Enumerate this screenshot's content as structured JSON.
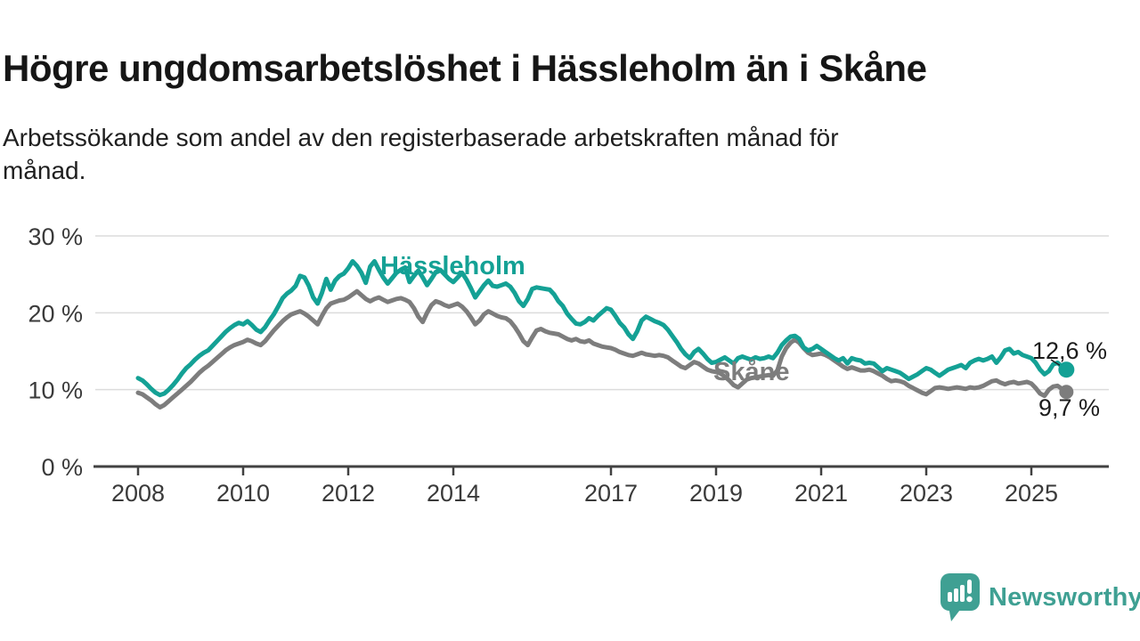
{
  "header": {
    "title": "Högre ungdomsarbetslöshet i Hässleholm än i Skåne",
    "subtitle_lines": [
      "Arbetssökande som andel av den registerbaserade arbetskraften månad för",
      "månad."
    ]
  },
  "annotations": {
    "hassleholm_end_value": "12,6 %",
    "skane_end_value": "9,7 %"
  },
  "footer": {
    "brand": "Newsworthy"
  },
  "colors": {
    "teal": "#14a195",
    "gray": "#7d7d7d",
    "logo_teal": "#3fa093",
    "axis": "#414141",
    "grid": "#dcdcdc",
    "tick_text": "#3a3a3a",
    "annotation_text": "#1c1c1c"
  },
  "chart_data": {
    "type": "line",
    "unit": "%",
    "frequency": "monthly",
    "x_start": {
      "year": 2008,
      "month": 1
    },
    "x_end": {
      "year": 2025,
      "month": 9
    },
    "ylim": [
      0,
      32
    ],
    "grid": "horizontal",
    "legend_position": "inline-labels",
    "y_ticks": [
      {
        "value": 30,
        "label": "30 %"
      },
      {
        "value": 20,
        "label": "20 %"
      },
      {
        "value": 10,
        "label": "10 %"
      },
      {
        "value": 0,
        "label": "0 %"
      }
    ],
    "x_tick_years": [
      2008,
      2010,
      2012,
      2014,
      2017,
      2019,
      2021,
      2023,
      2025
    ],
    "series": [
      {
        "name": "Hässleholm",
        "color": "#14a195",
        "last_value": 12.6,
        "last_value_label": "12,6 %",
        "values": [
          11.5,
          11.2,
          10.7,
          10.1,
          9.6,
          9.3,
          9.5,
          10.0,
          10.6,
          11.3,
          12.1,
          12.8,
          13.3,
          13.9,
          14.4,
          14.8,
          15.1,
          15.7,
          16.3,
          16.9,
          17.5,
          18.0,
          18.4,
          18.7,
          18.5,
          18.9,
          18.4,
          17.8,
          17.5,
          18.1,
          19.0,
          19.8,
          20.8,
          21.9,
          22.5,
          22.9,
          23.5,
          24.8,
          24.6,
          23.5,
          22.0,
          21.2,
          22.6,
          24.4,
          23.0,
          24.2,
          24.8,
          25.1,
          25.8,
          26.7,
          26.1,
          25.2,
          23.9,
          26.0,
          26.7,
          25.6,
          24.6,
          23.8,
          24.5,
          25.2,
          25.6,
          25.9,
          24.0,
          24.8,
          25.5,
          24.6,
          23.6,
          24.4,
          25.3,
          25.6,
          25.0,
          24.4,
          24.0,
          24.6,
          25.2,
          24.3,
          23.2,
          22.0,
          22.8,
          23.6,
          24.2,
          23.5,
          23.4,
          23.6,
          23.8,
          23.4,
          22.6,
          21.5,
          20.9,
          21.8,
          23.1,
          23.3,
          23.2,
          23.1,
          23.0,
          22.4,
          21.5,
          20.9,
          19.9,
          19.2,
          18.6,
          18.5,
          18.8,
          19.3,
          19.0,
          19.6,
          20.1,
          20.6,
          20.4,
          19.6,
          18.7,
          18.1,
          17.2,
          16.6,
          17.6,
          19.0,
          19.5,
          19.2,
          18.9,
          18.7,
          18.4,
          17.8,
          17.0,
          16.2,
          15.3,
          14.6,
          14.1,
          14.9,
          15.3,
          14.7,
          14.0,
          13.5,
          13.6,
          13.9,
          14.2,
          13.8,
          13.4,
          14.1,
          14.3,
          14.1,
          13.9,
          14.2,
          14.0,
          14.1,
          14.3,
          14.1,
          14.8,
          15.8,
          16.4,
          16.9,
          17.0,
          16.6,
          15.5,
          15.1,
          15.3,
          15.7,
          15.3,
          14.9,
          14.5,
          14.1,
          13.8,
          14.1,
          13.4,
          14.1,
          13.9,
          13.8,
          13.4,
          13.5,
          13.4,
          12.9,
          12.4,
          12.8,
          12.6,
          12.4,
          12.2,
          11.8,
          11.4,
          11.7,
          12.0,
          12.4,
          12.8,
          12.6,
          12.2,
          11.8,
          12.2,
          12.6,
          12.8,
          13.0,
          13.2,
          12.8,
          13.5,
          13.8,
          14.0,
          13.8,
          14.0,
          14.3,
          13.5,
          14.2,
          15.1,
          15.3,
          14.7,
          14.9,
          14.5,
          14.3,
          14.1,
          13.5,
          12.6,
          12.0,
          12.4,
          13.3,
          13.5,
          13.0,
          12.6
        ]
      },
      {
        "name": "Skåne",
        "color": "#7d7d7d",
        "last_value": 9.7,
        "last_value_label": "9,7 %",
        "values": [
          9.6,
          9.4,
          9.0,
          8.6,
          8.1,
          7.7,
          8.0,
          8.5,
          9.0,
          9.5,
          10.0,
          10.5,
          11.0,
          11.6,
          12.2,
          12.7,
          13.1,
          13.6,
          14.1,
          14.6,
          15.1,
          15.5,
          15.8,
          16.0,
          16.2,
          16.5,
          16.3,
          16.0,
          15.8,
          16.3,
          17.0,
          17.7,
          18.3,
          18.9,
          19.4,
          19.8,
          20.0,
          20.2,
          19.9,
          19.5,
          19.0,
          18.5,
          19.6,
          20.6,
          21.2,
          21.4,
          21.6,
          21.7,
          22.0,
          22.4,
          22.8,
          22.3,
          21.8,
          21.5,
          21.8,
          22.0,
          21.7,
          21.4,
          21.6,
          21.8,
          21.9,
          21.7,
          21.4,
          20.6,
          19.5,
          18.8,
          20.0,
          21.0,
          21.5,
          21.3,
          21.0,
          20.8,
          21.0,
          21.2,
          20.8,
          20.2,
          19.4,
          18.5,
          19.0,
          19.8,
          20.2,
          19.9,
          19.6,
          19.4,
          19.3,
          18.9,
          18.2,
          17.3,
          16.3,
          15.8,
          16.8,
          17.7,
          17.9,
          17.6,
          17.4,
          17.3,
          17.2,
          16.9,
          16.6,
          16.4,
          16.6,
          16.3,
          16.2,
          16.4,
          16.0,
          15.8,
          15.6,
          15.5,
          15.4,
          15.2,
          14.9,
          14.7,
          14.5,
          14.4,
          14.6,
          14.8,
          14.6,
          14.5,
          14.4,
          14.5,
          14.4,
          14.2,
          13.8,
          13.4,
          13.0,
          12.8,
          13.2,
          13.6,
          13.4,
          13.0,
          12.6,
          12.4,
          12.3,
          12.1,
          11.7,
          11.2,
          10.6,
          10.3,
          10.8,
          11.3,
          11.5,
          11.6,
          11.7,
          11.8,
          11.9,
          11.8,
          12.5,
          14.3,
          15.4,
          16.1,
          16.5,
          16.1,
          15.4,
          14.8,
          14.5,
          14.6,
          14.7,
          14.5,
          14.2,
          13.8,
          13.4,
          13.0,
          12.7,
          12.9,
          12.7,
          12.5,
          12.5,
          12.6,
          12.4,
          12.1,
          11.8,
          11.4,
          11.1,
          11.2,
          11.1,
          10.9,
          10.5,
          10.2,
          9.9,
          9.6,
          9.4,
          9.8,
          10.2,
          10.3,
          10.2,
          10.1,
          10.2,
          10.3,
          10.2,
          10.1,
          10.3,
          10.2,
          10.3,
          10.5,
          10.8,
          11.1,
          11.2,
          10.9,
          10.7,
          10.9,
          11.0,
          10.8,
          10.9,
          11.0,
          10.8,
          10.2,
          9.5,
          9.2,
          10.0,
          10.4,
          10.5,
          10.1,
          9.7
        ]
      }
    ]
  }
}
